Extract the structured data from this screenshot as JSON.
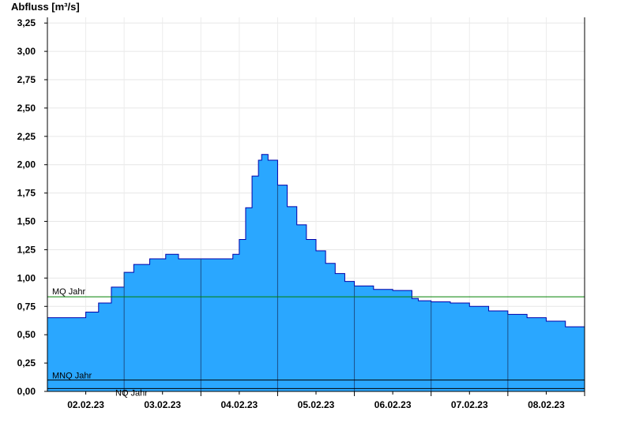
{
  "chart_data": {
    "type": "area",
    "ylabel": "Abfluss [m³/s]",
    "ylim": [
      0,
      3.3
    ],
    "y_ticks": [
      "0,00",
      "0,25",
      "0,50",
      "0,75",
      "1,00",
      "1,25",
      "1,50",
      "1,75",
      "2,00",
      "2,25",
      "2,50",
      "2,75",
      "3,00",
      "3,25"
    ],
    "x_range": [
      "2023-02-01T12:00",
      "2023-02-08T12:00"
    ],
    "x_ticks": [
      "02.02.23",
      "03.02.23",
      "04.02.23",
      "05.02.23",
      "06.02.23",
      "07.02.23",
      "08.02.23"
    ],
    "grid": true,
    "fill_color": "#2aa7ff",
    "line_color": "#0000aa",
    "series": [
      {
        "x": [
          "2023-02-01T12:00",
          "2023-02-01T18:00",
          "2023-02-02T00:00",
          "2023-02-02T04:00",
          "2023-02-02T08:00",
          "2023-02-02T12:00",
          "2023-02-02T15:00",
          "2023-02-02T20:00",
          "2023-02-03T00:00",
          "2023-02-03T01:00",
          "2023-02-03T04:00",
          "2023-02-03T05:00",
          "2023-02-03T20:00",
          "2023-02-03T22:00",
          "2023-02-04T00:00",
          "2023-02-04T02:00",
          "2023-02-04T04:00",
          "2023-02-04T06:00",
          "2023-02-04T07:00",
          "2023-02-04T09:00",
          "2023-02-04T12:00",
          "2023-02-04T15:00",
          "2023-02-04T18:00",
          "2023-02-04T21:00",
          "2023-02-05T00:00",
          "2023-02-05T03:00",
          "2023-02-05T06:00",
          "2023-02-05T09:00",
          "2023-02-05T12:00",
          "2023-02-05T18:00",
          "2023-02-06T00:00",
          "2023-02-06T06:00",
          "2023-02-06T08:00",
          "2023-02-06T12:00",
          "2023-02-06T18:00",
          "2023-02-07T00:00",
          "2023-02-07T06:00",
          "2023-02-07T12:00",
          "2023-02-07T18:00",
          "2023-02-08T00:00",
          "2023-02-08T06:00",
          "2023-02-08T12:00"
        ],
        "y": [
          0.65,
          0.65,
          0.7,
          0.78,
          0.92,
          1.05,
          1.12,
          1.17,
          1.17,
          1.21,
          1.21,
          1.17,
          1.17,
          1.21,
          1.34,
          1.62,
          1.9,
          2.04,
          2.09,
          2.04,
          1.82,
          1.63,
          1.47,
          1.34,
          1.24,
          1.13,
          1.04,
          0.97,
          0.93,
          0.9,
          0.89,
          0.82,
          0.8,
          0.79,
          0.78,
          0.75,
          0.71,
          0.68,
          0.65,
          0.62,
          0.57,
          0.53
        ]
      }
    ],
    "reference_lines": [
      {
        "name": "MQ Jahr",
        "value": 0.835,
        "color": "#008000"
      },
      {
        "name": "MNQ Jahr",
        "value": 0.1,
        "color": "#000000"
      },
      {
        "name": "NQ Jahr",
        "value": 0.025,
        "color": "#000000"
      }
    ]
  }
}
